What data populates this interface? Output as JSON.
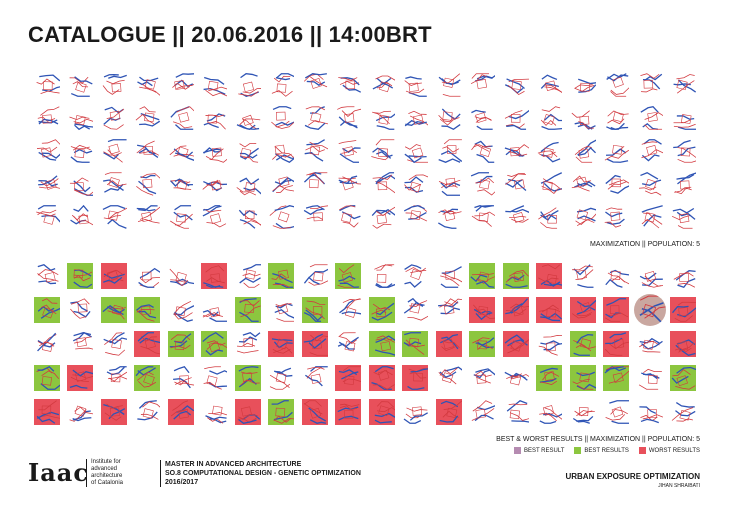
{
  "header": {
    "title": "CATALOGUE || 20.06.2016 || 14:00BRT"
  },
  "top_grid": {
    "caption": "MAXIMIZATION || POPULATION: 5",
    "rows": 5,
    "cols": 20,
    "highlights": []
  },
  "bottom_grid": {
    "caption": "BEST & WORST RESULTS || MAXIMIZATION || POPULATION: 5",
    "rows": 5,
    "cols": 20,
    "highlights": [
      {
        "row": 0,
        "col": 1,
        "type": "best"
      },
      {
        "row": 0,
        "col": 2,
        "type": "worst"
      },
      {
        "row": 0,
        "col": 5,
        "type": "worst"
      },
      {
        "row": 0,
        "col": 7,
        "type": "best"
      },
      {
        "row": 0,
        "col": 9,
        "type": "best"
      },
      {
        "row": 0,
        "col": 13,
        "type": "best"
      },
      {
        "row": 0,
        "col": 14,
        "type": "best"
      },
      {
        "row": 0,
        "col": 15,
        "type": "worst"
      },
      {
        "row": 1,
        "col": 0,
        "type": "best"
      },
      {
        "row": 1,
        "col": 2,
        "type": "best"
      },
      {
        "row": 1,
        "col": 3,
        "type": "best"
      },
      {
        "row": 1,
        "col": 6,
        "type": "best"
      },
      {
        "row": 1,
        "col": 8,
        "type": "best"
      },
      {
        "row": 1,
        "col": 10,
        "type": "best"
      },
      {
        "row": 1,
        "col": 13,
        "type": "worst"
      },
      {
        "row": 1,
        "col": 14,
        "type": "worst"
      },
      {
        "row": 1,
        "col": 15,
        "type": "worst"
      },
      {
        "row": 1,
        "col": 16,
        "type": "worst"
      },
      {
        "row": 1,
        "col": 17,
        "type": "worst"
      },
      {
        "row": 1,
        "col": 18,
        "type": "circle"
      },
      {
        "row": 1,
        "col": 19,
        "type": "worst"
      },
      {
        "row": 2,
        "col": 3,
        "type": "worst"
      },
      {
        "row": 2,
        "col": 4,
        "type": "best"
      },
      {
        "row": 2,
        "col": 5,
        "type": "best"
      },
      {
        "row": 2,
        "col": 7,
        "type": "worst"
      },
      {
        "row": 2,
        "col": 8,
        "type": "worst"
      },
      {
        "row": 2,
        "col": 10,
        "type": "best"
      },
      {
        "row": 2,
        "col": 11,
        "type": "best"
      },
      {
        "row": 2,
        "col": 12,
        "type": "worst"
      },
      {
        "row": 2,
        "col": 13,
        "type": "best"
      },
      {
        "row": 2,
        "col": 14,
        "type": "worst"
      },
      {
        "row": 2,
        "col": 16,
        "type": "best"
      },
      {
        "row": 2,
        "col": 17,
        "type": "worst"
      },
      {
        "row": 2,
        "col": 19,
        "type": "worst"
      },
      {
        "row": 3,
        "col": 0,
        "type": "best"
      },
      {
        "row": 3,
        "col": 1,
        "type": "worst"
      },
      {
        "row": 3,
        "col": 3,
        "type": "best"
      },
      {
        "row": 3,
        "col": 6,
        "type": "best"
      },
      {
        "row": 3,
        "col": 9,
        "type": "worst"
      },
      {
        "row": 3,
        "col": 10,
        "type": "worst"
      },
      {
        "row": 3,
        "col": 11,
        "type": "worst"
      },
      {
        "row": 3,
        "col": 15,
        "type": "best"
      },
      {
        "row": 3,
        "col": 16,
        "type": "best"
      },
      {
        "row": 3,
        "col": 17,
        "type": "best"
      },
      {
        "row": 3,
        "col": 19,
        "type": "best"
      },
      {
        "row": 4,
        "col": 0,
        "type": "worst"
      },
      {
        "row": 4,
        "col": 2,
        "type": "worst"
      },
      {
        "row": 4,
        "col": 4,
        "type": "worst"
      },
      {
        "row": 4,
        "col": 6,
        "type": "worst"
      },
      {
        "row": 4,
        "col": 7,
        "type": "best"
      },
      {
        "row": 4,
        "col": 8,
        "type": "worst"
      },
      {
        "row": 4,
        "col": 9,
        "type": "worst"
      },
      {
        "row": 4,
        "col": 10,
        "type": "worst"
      },
      {
        "row": 4,
        "col": 12,
        "type": "worst"
      }
    ]
  },
  "legend": {
    "items": [
      {
        "label": "BEST RESULT",
        "color": "#b58bb1"
      },
      {
        "label": "BEST RESULTS",
        "color": "#8cc63f"
      },
      {
        "label": "WORST RESULTS",
        "color": "#e8505b"
      }
    ]
  },
  "colors": {
    "best": "#8cc63f",
    "worst": "#e8505b",
    "circle": "#c9a7a0",
    "line_blue": "#2f54b5",
    "line_red": "#d2393f"
  },
  "footer": {
    "logo": "Iaac",
    "institute_lines": [
      "Institute for",
      "advanced",
      "architecture",
      "of Catalonia"
    ],
    "master_lines": [
      "MASTER IN ADVANCED ARCHITECTURE",
      "SO.8 COMPUTATIONAL DESIGN - GENETIC OPTIMIZATION",
      "2016/2017"
    ],
    "project": "URBAN EXPOSURE OPTIMIZATION",
    "author": "JIHAN SHRAIBATI"
  }
}
